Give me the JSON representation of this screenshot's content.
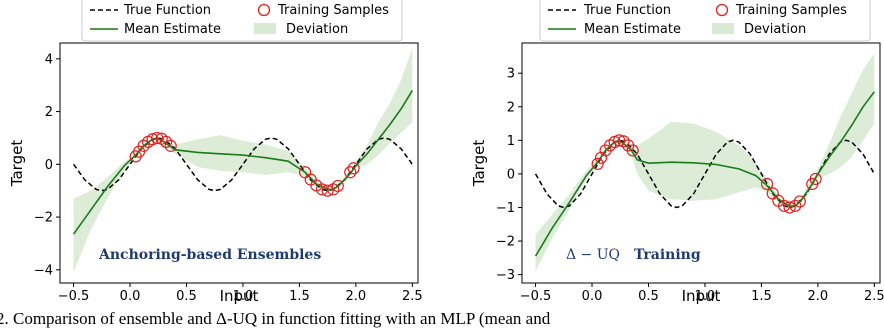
{
  "chart_data": [
    {
      "type": "line",
      "annotation": "Anchoring-based Ensembles",
      "xlabel": "Input",
      "ylabel": "Target",
      "xlim": [
        -0.62,
        2.55
      ],
      "ylim": [
        -4.5,
        4.6
      ],
      "xticks": [
        -0.5,
        0.0,
        0.5,
        1.0,
        1.5,
        2.0,
        2.5
      ],
      "xtick_labels": [
        "−0.5",
        "0.0",
        "0.5",
        "1.0",
        "1.5",
        "2.0",
        "2.5"
      ],
      "yticks": [
        -4,
        -2,
        0,
        2,
        4
      ],
      "ytick_labels": [
        "−4",
        "−2",
        "0",
        "2",
        "4"
      ],
      "legend": [
        "True Function",
        "Training Samples",
        "Mean Estimate",
        "Deviation"
      ],
      "legend_position": "top",
      "true_function": {
        "x": [
          -0.5,
          -0.4,
          -0.3,
          -0.25,
          -0.2,
          -0.1,
          0.0,
          0.1,
          0.2,
          0.25,
          0.3,
          0.4,
          0.5,
          0.6,
          0.7,
          0.75,
          0.8,
          0.9,
          1.0,
          1.1,
          1.2,
          1.25,
          1.3,
          1.4,
          1.5,
          1.6,
          1.7,
          1.75,
          1.8,
          1.9,
          2.0,
          2.1,
          2.2,
          2.25,
          2.3,
          2.4,
          2.5
        ],
        "y": [
          0.0,
          -0.59,
          -0.95,
          -1.0,
          -0.95,
          -0.59,
          0.0,
          0.59,
          0.95,
          1.0,
          0.95,
          0.59,
          0.0,
          -0.59,
          -0.95,
          -1.0,
          -0.95,
          -0.59,
          0.0,
          0.59,
          0.95,
          1.0,
          0.95,
          0.59,
          0.0,
          -0.59,
          -0.95,
          -1.0,
          -0.95,
          -0.59,
          0.0,
          0.59,
          0.95,
          1.0,
          0.95,
          0.59,
          0.0
        ]
      },
      "mean_estimate": {
        "x": [
          -0.5,
          -0.35,
          -0.2,
          -0.05,
          0.05,
          0.12,
          0.2,
          0.25,
          0.3,
          0.35,
          0.4,
          0.6,
          0.8,
          1.0,
          1.2,
          1.4,
          1.55,
          1.65,
          1.75,
          1.8,
          1.85,
          1.95,
          2.0,
          2.1,
          2.2,
          2.3,
          2.4,
          2.5
        ],
        "y": [
          -2.65,
          -1.75,
          -0.85,
          -0.05,
          0.35,
          0.7,
          0.95,
          0.98,
          0.85,
          0.7,
          0.55,
          0.45,
          0.4,
          0.35,
          0.25,
          0.12,
          -0.3,
          -0.75,
          -0.95,
          -0.95,
          -0.8,
          -0.35,
          -0.05,
          0.4,
          0.95,
          1.5,
          2.1,
          2.8
        ]
      },
      "deviation": {
        "x": [
          -0.5,
          -0.35,
          -0.2,
          -0.05,
          0.05,
          0.12,
          0.2,
          0.25,
          0.3,
          0.35,
          0.4,
          0.6,
          0.8,
          1.0,
          1.2,
          1.4,
          1.55,
          1.65,
          1.75,
          1.8,
          1.85,
          1.95,
          2.0,
          2.1,
          2.2,
          2.3,
          2.4,
          2.5
        ],
        "lower": [
          -4.1,
          -2.5,
          -1.3,
          -0.2,
          0.25,
          0.62,
          0.88,
          0.92,
          0.78,
          0.6,
          0.4,
          -0.1,
          -0.25,
          -0.3,
          -0.4,
          -0.3,
          -0.45,
          -0.85,
          -1.02,
          -1.02,
          -0.9,
          -0.45,
          -0.15,
          0.0,
          0.35,
          0.8,
          1.2,
          1.6
        ],
        "upper": [
          -1.3,
          -1.0,
          -0.5,
          0.1,
          0.45,
          0.78,
          1.02,
          1.04,
          0.92,
          0.82,
          0.75,
          0.95,
          1.1,
          0.9,
          0.75,
          0.5,
          -0.1,
          -0.65,
          -0.88,
          -0.88,
          -0.7,
          -0.25,
          0.05,
          0.75,
          1.6,
          2.3,
          3.2,
          4.4
        ]
      },
      "training_samples": {
        "x": [
          0.05,
          0.08,
          0.12,
          0.16,
          0.2,
          0.24,
          0.28,
          0.32,
          0.36,
          1.55,
          1.6,
          1.65,
          1.7,
          1.75,
          1.8,
          1.84,
          1.95,
          1.98
        ],
        "y": [
          0.3,
          0.48,
          0.7,
          0.85,
          0.95,
          1.0,
          0.97,
          0.85,
          0.7,
          -0.3,
          -0.58,
          -0.8,
          -0.95,
          -1.0,
          -0.95,
          -0.82,
          -0.3,
          -0.15
        ]
      }
    },
    {
      "type": "line",
      "annotation_math": "Δ − UQ",
      "annotation": "Training",
      "xlabel": "Input",
      "ylabel": "Target",
      "xlim": [
        -0.62,
        2.55
      ],
      "ylim": [
        -3.25,
        3.9
      ],
      "xticks": [
        -0.5,
        0.0,
        0.5,
        1.0,
        1.5,
        2.0,
        2.5
      ],
      "xtick_labels": [
        "−0.5",
        "0.0",
        "0.5",
        "1.0",
        "1.5",
        "2.0",
        "2.5"
      ],
      "yticks": [
        -3,
        -2,
        -1,
        0,
        1,
        2,
        3
      ],
      "ytick_labels": [
        "−3",
        "−2",
        "−1",
        "0",
        "1",
        "2",
        "3"
      ],
      "legend": [
        "True Function",
        "Training Samples",
        "Mean Estimate",
        "Deviation"
      ],
      "legend_position": "top",
      "true_function": {
        "x": [
          -0.5,
          -0.4,
          -0.3,
          -0.25,
          -0.2,
          -0.1,
          0.0,
          0.1,
          0.2,
          0.25,
          0.3,
          0.4,
          0.5,
          0.6,
          0.7,
          0.75,
          0.8,
          0.9,
          1.0,
          1.1,
          1.2,
          1.25,
          1.3,
          1.4,
          1.5,
          1.6,
          1.7,
          1.75,
          1.8,
          1.9,
          2.0,
          2.1,
          2.2,
          2.25,
          2.3,
          2.4,
          2.5
        ],
        "y": [
          0.0,
          -0.59,
          -0.95,
          -1.0,
          -0.95,
          -0.59,
          0.0,
          0.59,
          0.95,
          1.0,
          0.95,
          0.59,
          0.0,
          -0.59,
          -0.95,
          -1.0,
          -0.95,
          -0.59,
          0.0,
          0.59,
          0.95,
          1.0,
          0.95,
          0.59,
          0.0,
          -0.59,
          -0.95,
          -1.0,
          -0.95,
          -0.59,
          0.0,
          0.59,
          0.95,
          1.0,
          0.95,
          0.59,
          0.0
        ]
      },
      "mean_estimate": {
        "x": [
          -0.5,
          -0.35,
          -0.2,
          -0.05,
          0.05,
          0.12,
          0.2,
          0.25,
          0.3,
          0.35,
          0.4,
          0.5,
          0.7,
          0.9,
          1.1,
          1.3,
          1.45,
          1.55,
          1.65,
          1.75,
          1.8,
          1.85,
          1.95,
          2.0,
          2.1,
          2.2,
          2.3,
          2.4,
          2.5
        ],
        "y": [
          -2.45,
          -1.6,
          -0.85,
          -0.05,
          0.35,
          0.7,
          0.95,
          0.97,
          0.85,
          0.7,
          0.42,
          0.32,
          0.35,
          0.33,
          0.28,
          0.15,
          -0.05,
          -0.35,
          -0.75,
          -0.97,
          -0.95,
          -0.8,
          -0.3,
          0.0,
          0.5,
          0.95,
          1.45,
          2.0,
          2.45
        ]
      },
      "deviation": {
        "x": [
          -0.5,
          -0.35,
          -0.2,
          -0.05,
          0.05,
          0.12,
          0.2,
          0.25,
          0.3,
          0.35,
          0.4,
          0.5,
          0.7,
          0.9,
          1.1,
          1.3,
          1.45,
          1.55,
          1.65,
          1.75,
          1.8,
          1.85,
          1.95,
          2.0,
          2.1,
          2.2,
          2.3,
          2.4,
          2.5
        ],
        "lower": [
          -2.9,
          -1.9,
          -1.05,
          -0.15,
          0.28,
          0.62,
          0.88,
          0.9,
          0.75,
          0.55,
          0.0,
          -0.5,
          -0.75,
          -0.8,
          -0.75,
          -0.55,
          -0.4,
          -0.55,
          -0.85,
          -1.05,
          -1.02,
          -0.9,
          -0.45,
          -0.15,
          0.0,
          0.2,
          0.5,
          1.0,
          1.5
        ],
        "upper": [
          -1.8,
          -1.2,
          -0.6,
          0.1,
          0.45,
          0.78,
          1.02,
          1.03,
          0.95,
          0.85,
          0.85,
          1.05,
          1.55,
          1.5,
          1.25,
          0.85,
          0.35,
          -0.15,
          -0.65,
          -0.9,
          -0.88,
          -0.7,
          -0.15,
          0.15,
          0.9,
          1.7,
          2.4,
          3.1,
          3.6
        ]
      },
      "training_samples": {
        "x": [
          0.05,
          0.08,
          0.12,
          0.16,
          0.2,
          0.24,
          0.28,
          0.32,
          0.36,
          1.55,
          1.6,
          1.65,
          1.7,
          1.75,
          1.8,
          1.84,
          1.95,
          1.98
        ],
        "y": [
          0.3,
          0.48,
          0.7,
          0.85,
          0.95,
          1.0,
          0.97,
          0.85,
          0.7,
          -0.3,
          -0.58,
          -0.8,
          -0.95,
          -1.0,
          -0.95,
          -0.82,
          -0.3,
          -0.15
        ]
      }
    }
  ],
  "caption_fragment": "2. Comparison of ensemble and Δ-UQ in function fitting with an MLP (mean and",
  "colors": {
    "mean": "#1a7a1a",
    "band": "#d9ead3",
    "samples": "#e02020",
    "true_function": "#000000",
    "annotation": "#1f3a6e"
  }
}
